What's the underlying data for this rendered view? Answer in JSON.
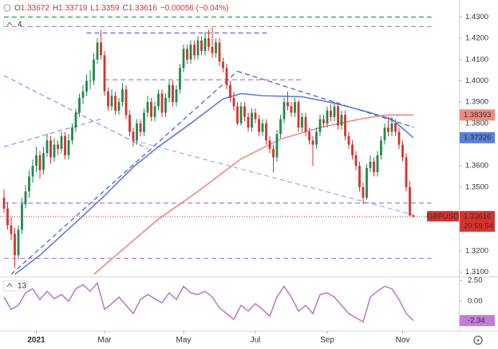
{
  "chart_data": {
    "type": "candlestick",
    "symbol": "GBPUSD",
    "ohlc_labels": [
      "O",
      "H",
      "L",
      "C"
    ],
    "change_label": "−0.00056 (−0.04%)",
    "pane_label": "4",
    "countdown": "20:59:54",
    "up_color": "#1f8a4c",
    "down_color": "#d8322d",
    "ylim": [
      1.308,
      1.438
    ],
    "yticks": [
      {
        "value": 1.43,
        "label": "1.4300"
      },
      {
        "value": 1.42,
        "label": "1.4200"
      },
      {
        "value": 1.41,
        "label": "1.4100"
      },
      {
        "value": 1.4,
        "label": "1.4000"
      },
      {
        "value": 1.39,
        "label": "1.3900"
      },
      {
        "value": 1.38,
        "label": "1.3800"
      },
      {
        "value": 1.36,
        "label": "1.3600"
      },
      {
        "value": 1.35,
        "label": "1.3500"
      },
      {
        "value": 1.32,
        "label": "1.3200"
      },
      {
        "value": 1.31,
        "label": "1.3100"
      }
    ],
    "xticks": [
      {
        "value": 9,
        "label": "2021"
      },
      {
        "value": 28,
        "label": "Mar"
      },
      {
        "value": 50,
        "label": "May"
      },
      {
        "value": 70,
        "label": "Jul"
      },
      {
        "value": 90,
        "label": "Sep"
      },
      {
        "value": 111,
        "label": "Nov"
      }
    ],
    "grid": false,
    "ohlc": [
      [
        1.345,
        1.349,
        1.338,
        1.34
      ],
      [
        1.34,
        1.343,
        1.33,
        1.332
      ],
      [
        1.332,
        1.336,
        1.325,
        1.328
      ],
      [
        1.328,
        1.331,
        1.312,
        1.318
      ],
      [
        1.318,
        1.332,
        1.316,
        1.33
      ],
      [
        1.33,
        1.345,
        1.328,
        1.342
      ],
      [
        1.342,
        1.351,
        1.34,
        1.348
      ],
      [
        1.348,
        1.358,
        1.345,
        1.355
      ],
      [
        1.355,
        1.363,
        1.352,
        1.36
      ],
      [
        1.36,
        1.369,
        1.357,
        1.365
      ],
      [
        1.365,
        1.367,
        1.354,
        1.358
      ],
      [
        1.358,
        1.369,
        1.356,
        1.366
      ],
      [
        1.366,
        1.375,
        1.364,
        1.372
      ],
      [
        1.372,
        1.374,
        1.361,
        1.364
      ],
      [
        1.364,
        1.373,
        1.362,
        1.37
      ],
      [
        1.37,
        1.372,
        1.365,
        1.368
      ],
      [
        1.368,
        1.376,
        1.366,
        1.374
      ],
      [
        1.374,
        1.376,
        1.363,
        1.365
      ],
      [
        1.365,
        1.375,
        1.363,
        1.372
      ],
      [
        1.372,
        1.38,
        1.37,
        1.378
      ],
      [
        1.378,
        1.387,
        1.376,
        1.385
      ],
      [
        1.385,
        1.394,
        1.383,
        1.392
      ],
      [
        1.392,
        1.398,
        1.389,
        1.395
      ],
      [
        1.395,
        1.403,
        1.393,
        1.4
      ],
      [
        1.4,
        1.405,
        1.396,
        1.4
      ],
      [
        1.4,
        1.413,
        1.398,
        1.41
      ],
      [
        1.41,
        1.42,
        1.408,
        1.418
      ],
      [
        1.418,
        1.424,
        1.41,
        1.412
      ],
      [
        1.412,
        1.414,
        1.393,
        1.395
      ],
      [
        1.395,
        1.397,
        1.386,
        1.388
      ],
      [
        1.388,
        1.396,
        1.386,
        1.393
      ],
      [
        1.393,
        1.395,
        1.384,
        1.386
      ],
      [
        1.386,
        1.392,
        1.384,
        1.39
      ],
      [
        1.39,
        1.399,
        1.388,
        1.396
      ],
      [
        1.396,
        1.398,
        1.382,
        1.384
      ],
      [
        1.384,
        1.386,
        1.374,
        1.376
      ],
      [
        1.376,
        1.378,
        1.369,
        1.372
      ],
      [
        1.372,
        1.382,
        1.37,
        1.38
      ],
      [
        1.38,
        1.382,
        1.374,
        1.376
      ],
      [
        1.376,
        1.387,
        1.374,
        1.385
      ],
      [
        1.385,
        1.393,
        1.383,
        1.39
      ],
      [
        1.39,
        1.392,
        1.381,
        1.383
      ],
      [
        1.383,
        1.39,
        1.381,
        1.388
      ],
      [
        1.388,
        1.396,
        1.386,
        1.394
      ],
      [
        1.394,
        1.396,
        1.383,
        1.385
      ],
      [
        1.385,
        1.394,
        1.383,
        1.392
      ],
      [
        1.392,
        1.4,
        1.39,
        1.398
      ],
      [
        1.398,
        1.4,
        1.388,
        1.39
      ],
      [
        1.39,
        1.398,
        1.388,
        1.396
      ],
      [
        1.396,
        1.408,
        1.394,
        1.406
      ],
      [
        1.406,
        1.417,
        1.404,
        1.415
      ],
      [
        1.415,
        1.417,
        1.408,
        1.41
      ],
      [
        1.41,
        1.419,
        1.408,
        1.417
      ],
      [
        1.417,
        1.419,
        1.41,
        1.412
      ],
      [
        1.412,
        1.421,
        1.41,
        1.419
      ],
      [
        1.419,
        1.421,
        1.412,
        1.414
      ],
      [
        1.414,
        1.423,
        1.412,
        1.42
      ],
      [
        1.42,
        1.424,
        1.414,
        1.416
      ],
      [
        1.416,
        1.425,
        1.411,
        1.413
      ],
      [
        1.413,
        1.42,
        1.411,
        1.418
      ],
      [
        1.418,
        1.42,
        1.407,
        1.409
      ],
      [
        1.409,
        1.411,
        1.404,
        1.406
      ],
      [
        1.406,
        1.408,
        1.396,
        1.398
      ],
      [
        1.398,
        1.4,
        1.39,
        1.392
      ],
      [
        1.392,
        1.395,
        1.386,
        1.388
      ],
      [
        1.388,
        1.39,
        1.379,
        1.38
      ],
      [
        1.38,
        1.39,
        1.379,
        1.388
      ],
      [
        1.388,
        1.39,
        1.381,
        1.383
      ],
      [
        1.383,
        1.385,
        1.376,
        1.378
      ],
      [
        1.378,
        1.387,
        1.376,
        1.385
      ],
      [
        1.385,
        1.387,
        1.38,
        1.382
      ],
      [
        1.382,
        1.384,
        1.374,
        1.376
      ],
      [
        1.376,
        1.382,
        1.374,
        1.38
      ],
      [
        1.38,
        1.382,
        1.37,
        1.372
      ],
      [
        1.372,
        1.374,
        1.366,
        1.368
      ],
      [
        1.368,
        1.37,
        1.357,
        1.364
      ],
      [
        1.364,
        1.377,
        1.362,
        1.375
      ],
      [
        1.375,
        1.384,
        1.373,
        1.382
      ],
      [
        1.382,
        1.392,
        1.38,
        1.39
      ],
      [
        1.39,
        1.395,
        1.386,
        1.388
      ],
      [
        1.388,
        1.39,
        1.383,
        1.385
      ],
      [
        1.385,
        1.392,
        1.383,
        1.39
      ],
      [
        1.39,
        1.391,
        1.376,
        1.378
      ],
      [
        1.378,
        1.385,
        1.376,
        1.383
      ],
      [
        1.383,
        1.385,
        1.374,
        1.376
      ],
      [
        1.376,
        1.378,
        1.37,
        1.372
      ],
      [
        1.372,
        1.374,
        1.36,
        1.37
      ],
      [
        1.37,
        1.378,
        1.368,
        1.376
      ],
      [
        1.376,
        1.384,
        1.374,
        1.382
      ],
      [
        1.382,
        1.384,
        1.378,
        1.38
      ],
      [
        1.38,
        1.388,
        1.378,
        1.386
      ],
      [
        1.386,
        1.389,
        1.381,
        1.383
      ],
      [
        1.383,
        1.39,
        1.381,
        1.388
      ],
      [
        1.388,
        1.39,
        1.377,
        1.379
      ],
      [
        1.379,
        1.386,
        1.377,
        1.384
      ],
      [
        1.384,
        1.386,
        1.372,
        1.374
      ],
      [
        1.374,
        1.376,
        1.368,
        1.37
      ],
      [
        1.37,
        1.372,
        1.363,
        1.365
      ],
      [
        1.365,
        1.367,
        1.358,
        1.36
      ],
      [
        1.36,
        1.362,
        1.348,
        1.35
      ],
      [
        1.35,
        1.352,
        1.342,
        1.345
      ],
      [
        1.345,
        1.361,
        1.344,
        1.359
      ],
      [
        1.359,
        1.365,
        1.357,
        1.362
      ],
      [
        1.362,
        1.364,
        1.355,
        1.357
      ],
      [
        1.357,
        1.367,
        1.355,
        1.365
      ],
      [
        1.365,
        1.374,
        1.363,
        1.372
      ],
      [
        1.372,
        1.38,
        1.37,
        1.378
      ],
      [
        1.378,
        1.383,
        1.374,
        1.376
      ],
      [
        1.376,
        1.383,
        1.374,
        1.38
      ],
      [
        1.38,
        1.382,
        1.374,
        1.376
      ],
      [
        1.376,
        1.378,
        1.368,
        1.37
      ],
      [
        1.37,
        1.372,
        1.362,
        1.364
      ],
      [
        1.364,
        1.366,
        1.348,
        1.35
      ],
      [
        1.35,
        1.353,
        1.336,
        1.3367
      ],
      [
        1.33672,
        1.33719,
        1.3359,
        1.33616
      ]
    ],
    "series": [
      {
        "color": "#5b7fdc",
        "x": [
          3,
          10,
          21,
          28,
          36,
          43,
          52,
          61,
          66,
          72,
          83,
          92,
          101,
          108,
          114
        ],
        "values": [
          1.309,
          1.318,
          1.335,
          1.346,
          1.3595,
          1.369,
          1.38,
          1.3915,
          1.394,
          1.393,
          1.3925,
          1.3895,
          1.3855,
          1.382,
          1.37326
        ]
      },
      {
        "color": "#f08a7e",
        "x": [
          25,
          34,
          43,
          54,
          66,
          77,
          88,
          99,
          106,
          114
        ],
        "values": [
          1.309,
          1.322,
          1.335,
          1.348,
          1.3633,
          1.3726,
          1.378,
          1.382,
          1.3839,
          1.38393
        ]
      }
    ],
    "levels": [
      {
        "value": 1.43,
        "color": "#1fae3a",
        "from": 0,
        "to": 119
      },
      {
        "value": 1.4255,
        "color": "#9e9e9e",
        "from": 0,
        "to": 119
      },
      {
        "value": 1.4225,
        "color": "#5b6ee0",
        "from": 23,
        "to": 74
      },
      {
        "value": 1.4005,
        "color": "#b57bd6",
        "from": 28,
        "to": 83
      },
      {
        "value": 1.3425,
        "color": "#b57bd6",
        "from": 0,
        "to": 119
      },
      {
        "value": 1.3165,
        "color": "#b57bd6",
        "from": 0,
        "to": 119
      }
    ],
    "trendlines": [
      {
        "x": [
          2,
          65
        ],
        "y": [
          1.309,
          1.4045
        ],
        "color": "#3f5bd8"
      },
      {
        "x": [
          65,
          114
        ],
        "y": [
          1.4045,
          1.3782
        ],
        "color": "#3f5bd8"
      },
      {
        "x": [
          0,
          40
        ],
        "y": [
          1.4025,
          1.368
        ],
        "color": "#8c8ff0"
      },
      {
        "x": [
          0,
          27
        ],
        "y": [
          1.369,
          1.382
        ],
        "color": "#8c8ff0"
      },
      {
        "x": [
          36,
          114
        ],
        "y": [
          1.372,
          1.337
        ],
        "color": "#a9a9ee"
      }
    ],
    "oscillator": {
      "label": "13",
      "color": "#c27bd6",
      "ylim": [
        -3.56,
        2.98
      ],
      "yticks": [
        {
          "value": 2.5,
          "label": "2.50"
        },
        {
          "value": 0,
          "label": "0.00"
        }
      ],
      "x": [
        0,
        2,
        4,
        6,
        8,
        10,
        12,
        14,
        16,
        18,
        20,
        22,
        24,
        26,
        28,
        30,
        32,
        34,
        36,
        38,
        40,
        42,
        44,
        46,
        48,
        50,
        52,
        54,
        56,
        58,
        60,
        62,
        64,
        66,
        68,
        70,
        72,
        74,
        76,
        78,
        80,
        82,
        84,
        86,
        88,
        90,
        92,
        94,
        96,
        98,
        100,
        102,
        104,
        106,
        108,
        110,
        112,
        114
      ],
      "values": [
        0.5,
        -1.0,
        -0.5,
        1.0,
        1.5,
        0.2,
        1.2,
        0.3,
        0.8,
        0.0,
        1.5,
        2.0,
        1.2,
        2.2,
        -1.0,
        -0.3,
        0.5,
        -0.5,
        -1.5,
        0.2,
        0.8,
        0.3,
        -0.2,
        1.0,
        0.2,
        1.8,
        1.0,
        0.8,
        1.2,
        0.5,
        -0.8,
        -1.5,
        -2.2,
        -0.5,
        -1.2,
        -0.3,
        -1.0,
        -1.8,
        0.5,
        1.8,
        0.5,
        -1.2,
        -0.5,
        -1.5,
        0.8,
        1.0,
        0.5,
        -0.5,
        -1.5,
        -2.0,
        -2.5,
        0.5,
        1.2,
        1.8,
        1.5,
        0.2,
        -1.5,
        -2.34
      ]
    }
  }
}
